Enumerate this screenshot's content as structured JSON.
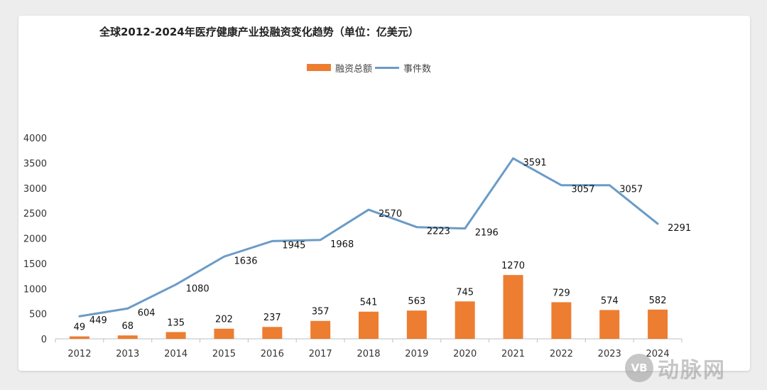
{
  "chart_data": {
    "type": "bar",
    "title": "全球2012-2024年医疗健康产业投融资变化趋势（单位：亿美元）",
    "categories": [
      "2012",
      "2013",
      "2014",
      "2015",
      "2016",
      "2017",
      "2018",
      "2019",
      "2020",
      "2021",
      "2022",
      "2023",
      "2024"
    ],
    "series": [
      {
        "name": "融资总额",
        "type": "bar",
        "color": "#ED7D31",
        "values": [
          49,
          68,
          135,
          202,
          237,
          357,
          541,
          563,
          745,
          1270,
          729,
          574,
          582
        ]
      },
      {
        "name": "事件数",
        "type": "line",
        "color": "#6B9BC7",
        "values": [
          449,
          604,
          1080,
          1636,
          1945,
          1968,
          2570,
          2223,
          2196,
          3591,
          3057,
          3057,
          2291
        ]
      }
    ],
    "ylim": [
      0,
      4000
    ],
    "yticks": [
      "0",
      "500",
      "1000",
      "1500",
      "2000",
      "2500",
      "3000",
      "3500",
      "4000"
    ],
    "grid": false,
    "legend_position": "top-center"
  },
  "watermark": {
    "logo_text": "VB",
    "text": "动脉网"
  }
}
